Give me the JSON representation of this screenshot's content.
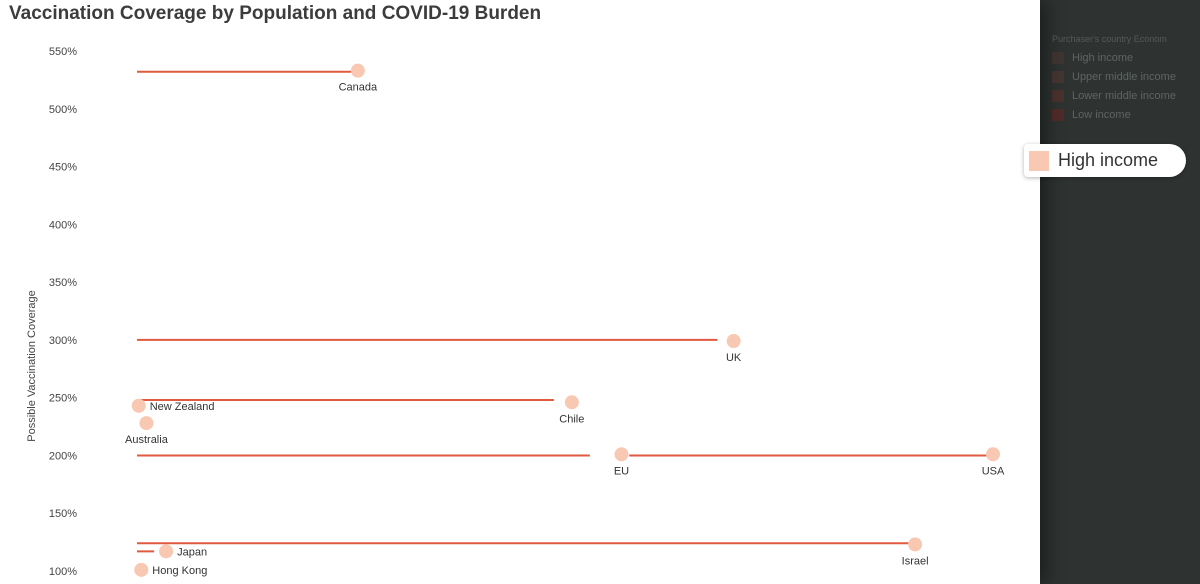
{
  "chart_data": {
    "type": "scatter",
    "title": "Vaccination Coverage by Population and COVID-19 Burden",
    "xlabel": "",
    "ylabel": "Possible Vaccination Coverage",
    "ylim": [
      100,
      560
    ],
    "y_ticks": [
      "550%",
      "500%",
      "450%",
      "400%",
      "350%",
      "300%",
      "250%",
      "200%",
      "150%",
      "100%"
    ],
    "grid": false,
    "point_color": "#f9c8b3",
    "line_color": "#e05a40",
    "points": [
      {
        "label": "Canada",
        "x": 0.258,
        "y": 533
      },
      {
        "label": "UK",
        "x": 0.697,
        "y": 299
      },
      {
        "label": "New Zealand",
        "x": 0.002,
        "y": 243
      },
      {
        "label": "Chile",
        "x": 0.508,
        "y": 246
      },
      {
        "label": "Australia",
        "x": 0.011,
        "y": 228
      },
      {
        "label": "EU",
        "x": 0.566,
        "y": 201
      },
      {
        "label": "USA",
        "x": 1.0,
        "y": 201
      },
      {
        "label": "Israel",
        "x": 0.909,
        "y": 123
      },
      {
        "label": "Japan",
        "x": 0.034,
        "y": 117
      },
      {
        "label": "Hong Kong",
        "x": 0.005,
        "y": 101
      }
    ],
    "lines": [
      {
        "y": 532,
        "x1": 0.0,
        "x2": 0.258
      },
      {
        "y": 300,
        "x1": 0.0,
        "x2": 0.678
      },
      {
        "y": 248,
        "x1": 0.0,
        "x2": 0.487
      },
      {
        "y": 200,
        "x1": 0.0,
        "x2": 0.529
      },
      {
        "y": 200,
        "x1": 0.575,
        "x2": 1.0
      },
      {
        "y": 124,
        "x1": 0.0,
        "x2": 0.905
      },
      {
        "y": 117,
        "x1": 0.0,
        "x2": 0.02
      }
    ]
  },
  "legend": {
    "heading": "Purchaser's country Econom",
    "items": [
      {
        "label": "High income",
        "color": "#5b3a33"
      },
      {
        "label": "Upper middle income",
        "color": "#6b3a30"
      },
      {
        "label": "Lower middle income",
        "color": "#7a2e26"
      },
      {
        "label": "Low income",
        "color": "#8a1e1a"
      }
    ]
  },
  "tooltip": {
    "label": "High income",
    "color": "#f9c8b3"
  }
}
